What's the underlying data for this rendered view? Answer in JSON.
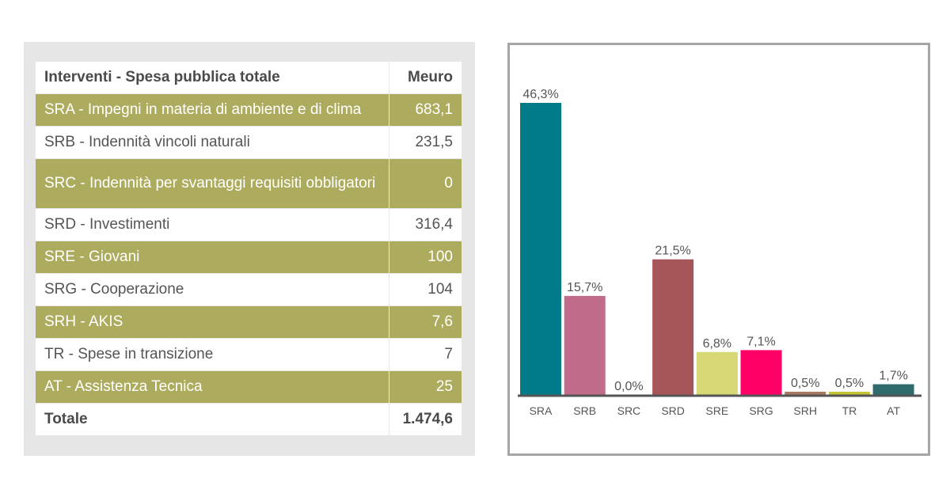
{
  "table": {
    "header": {
      "label": "Interventi - Spesa pubblica totale",
      "value": "Meuro"
    },
    "rows": [
      {
        "label": "SRA - Impegni in materia di ambiente e di clima",
        "value": "683,1"
      },
      {
        "label": "SRB - Indennità vincoli naturali",
        "value": "231,5"
      },
      {
        "label": "SRC - Indennità per svantaggi requisiti obbligatori",
        "value": "0"
      },
      {
        "label": "SRD - Investimenti",
        "value": "316,4"
      },
      {
        "label": "SRE - Giovani",
        "value": "100"
      },
      {
        "label": "SRG - Cooperazione",
        "value": "104"
      },
      {
        "label": "SRH - AKIS",
        "value": "7,6"
      },
      {
        "label": "TR - Spese in transizione",
        "value": "7"
      },
      {
        "label": "AT - Assistenza Tecnica",
        "value": "25"
      }
    ],
    "total": {
      "label": "Totale",
      "value": "1.474,6"
    }
  },
  "colors": {
    "table_shaded_row": "#adac5e",
    "panel_background": "#e6e6e6",
    "chart_border": "#a6a6a6",
    "axis": "#555555"
  },
  "chart_data": {
    "type": "bar",
    "categories": [
      "SRA",
      "SRB",
      "SRC",
      "SRD",
      "SRE",
      "SRG",
      "SRH",
      "TR",
      "AT"
    ],
    "values": [
      46.3,
      15.7,
      0.0,
      21.5,
      6.8,
      7.1,
      0.5,
      0.5,
      1.7
    ],
    "value_labels": [
      "46,3%",
      "15,7%",
      "0,0%",
      "21,5%",
      "6,8%",
      "7,1%",
      "0,5%",
      "0,5%",
      "1,7%"
    ],
    "colors": [
      "#007b87",
      "#c06b8a",
      "#c0c0c0",
      "#a65558",
      "#d6d975",
      "#ff0066",
      "#a8795f",
      "#c5c533",
      "#2f6b6c"
    ],
    "ylim": [
      0,
      46.3
    ],
    "grid": false,
    "legend": "none"
  }
}
